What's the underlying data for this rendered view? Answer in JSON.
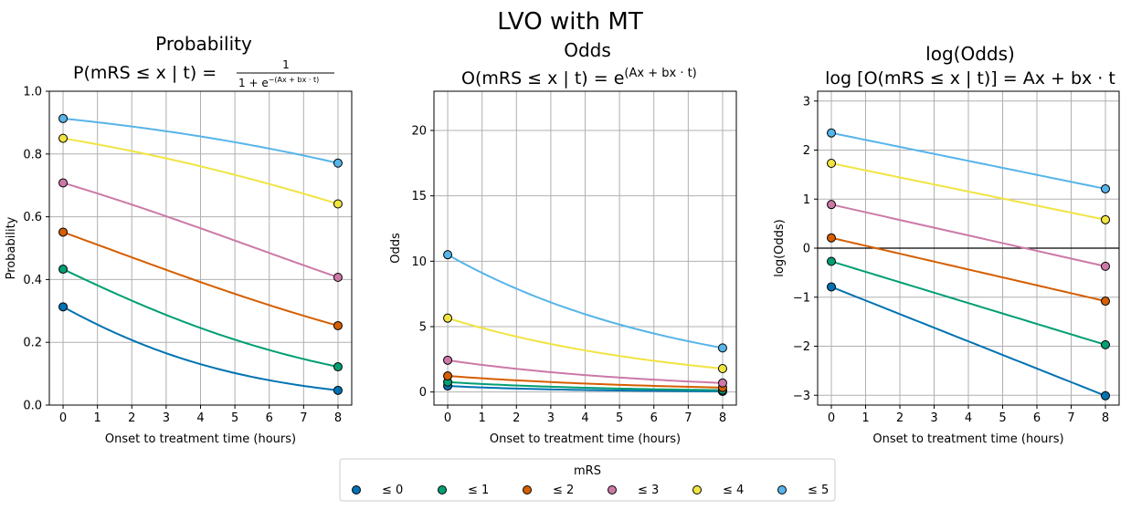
{
  "suptitle": "LVO with MT",
  "colors": [
    "#0072b2",
    "#009e73",
    "#d55e00",
    "#cc79a7",
    "#f0e442",
    "#56b4e9"
  ],
  "legend": {
    "title": "mRS",
    "entries": [
      "≤ 0",
      "≤ 1",
      "≤ 2",
      "≤ 3",
      "≤ 4",
      "≤ 5"
    ],
    "placement": "bottom-center"
  },
  "titles": {
    "probability": {
      "line1": "Probability",
      "line2_lhs": "P(mRS ≤ x | t) = ",
      "frac_num": "1",
      "frac_den": "1 + e",
      "frac_exp": "−(Ax + bx · t)"
    },
    "odds": {
      "line1": "Odds",
      "line2_lhs": "O(mRS ≤ x | t) = e",
      "exp": "(Ax + bx · t)"
    },
    "logodds": {
      "line1": "log(Odds)",
      "line2": "log [O(mRS ≤ x | t)] = Ax + bx · t"
    }
  },
  "chart_data": [
    {
      "type": "line",
      "title": "Probability",
      "xlabel": "Onset to treatment time (hours)",
      "ylabel": "Probability",
      "xlim": [
        -0.4,
        8.4
      ],
      "ylim": [
        0.0,
        1.0
      ],
      "xticks": [
        0,
        1,
        2,
        3,
        4,
        5,
        6,
        7,
        8
      ],
      "yticks": [
        0.0,
        0.2,
        0.4,
        0.6,
        0.8,
        1.0
      ],
      "yticklabels": [
        "0.0",
        "0.2",
        "0.4",
        "0.6",
        "0.8",
        "1.0"
      ],
      "grid": true,
      "transform": "probability",
      "series": [
        {
          "name": "≤ 0",
          "x": [
            0,
            8
          ],
          "y": [
            0.313,
            0.047
          ]
        },
        {
          "name": "≤ 1",
          "x": [
            0,
            8
          ],
          "y": [
            0.433,
            0.122
          ]
        },
        {
          "name": "≤ 2",
          "x": [
            0,
            8
          ],
          "y": [
            0.551,
            0.253
          ]
        },
        {
          "name": "≤ 3",
          "x": [
            0,
            8
          ],
          "y": [
            0.708,
            0.407
          ]
        },
        {
          "name": "≤ 4",
          "x": [
            0,
            8
          ],
          "y": [
            0.85,
            0.641
          ]
        },
        {
          "name": "≤ 5",
          "x": [
            0,
            8
          ],
          "y": [
            0.913,
            0.771
          ]
        }
      ]
    },
    {
      "type": "line",
      "title": "Odds",
      "xlabel": "Onset to treatment time (hours)",
      "ylabel": "Odds",
      "xlim": [
        -0.4,
        8.4
      ],
      "ylim": [
        -1.0,
        23.0
      ],
      "xticks": [
        0,
        1,
        2,
        3,
        4,
        5,
        6,
        7,
        8
      ],
      "yticks": [
        0,
        5,
        10,
        15,
        20
      ],
      "yticklabels": [
        "0",
        "5",
        "10",
        "15",
        "20"
      ],
      "grid": true,
      "transform": "odds",
      "series": [
        {
          "name": "≤ 0",
          "x": [
            0,
            8
          ],
          "y": [
            0.46,
            0.05
          ]
        },
        {
          "name": "≤ 1",
          "x": [
            0,
            8
          ],
          "y": [
            0.76,
            0.14
          ]
        },
        {
          "name": "≤ 2",
          "x": [
            0,
            8
          ],
          "y": [
            1.23,
            0.34
          ]
        },
        {
          "name": "≤ 3",
          "x": [
            0,
            8
          ],
          "y": [
            2.43,
            0.69
          ]
        },
        {
          "name": "≤ 4",
          "x": [
            0,
            8
          ],
          "y": [
            5.65,
            1.79
          ]
        },
        {
          "name": "≤ 5",
          "x": [
            0,
            8
          ],
          "y": [
            10.5,
            3.37
          ]
        }
      ]
    },
    {
      "type": "line",
      "title": "log(Odds)",
      "xlabel": "Onset to treatment time (hours)",
      "ylabel": "log(Odds)",
      "xlim": [
        -0.4,
        8.4
      ],
      "ylim": [
        -3.2,
        3.2
      ],
      "xticks": [
        0,
        1,
        2,
        3,
        4,
        5,
        6,
        7,
        8
      ],
      "yticks": [
        -3,
        -2,
        -1,
        0,
        1,
        2,
        3
      ],
      "yticklabels": [
        "−3",
        "−2",
        "−1",
        "0",
        "1",
        "2",
        "3"
      ],
      "grid": true,
      "zero_line": true,
      "transform": "logodds",
      "series": [
        {
          "name": "≤ 0",
          "x": [
            0,
            8
          ],
          "y": [
            -0.79,
            -3.01
          ]
        },
        {
          "name": "≤ 1",
          "x": [
            0,
            8
          ],
          "y": [
            -0.27,
            -1.97
          ]
        },
        {
          "name": "≤ 2",
          "x": [
            0,
            8
          ],
          "y": [
            0.21,
            -1.08
          ]
        },
        {
          "name": "≤ 3",
          "x": [
            0,
            8
          ],
          "y": [
            0.89,
            -0.37
          ]
        },
        {
          "name": "≤ 4",
          "x": [
            0,
            8
          ],
          "y": [
            1.73,
            0.58
          ]
        },
        {
          "name": "≤ 5",
          "x": [
            0,
            8
          ],
          "y": [
            2.35,
            1.21
          ]
        }
      ]
    }
  ]
}
